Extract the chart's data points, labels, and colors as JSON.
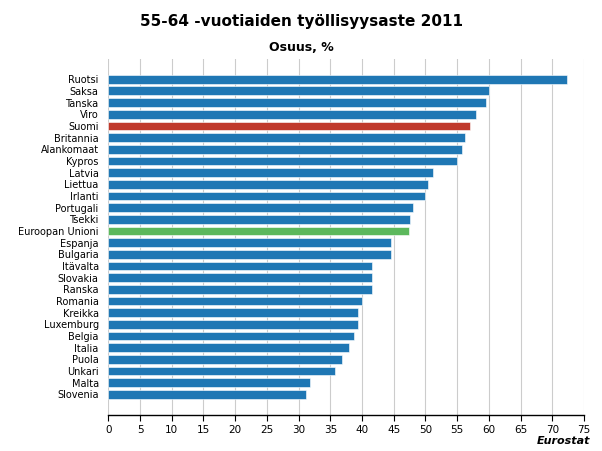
{
  "title": "55-64 -vuotiaiden työllisyysaste 2011",
  "subtitle": "Osuus, %",
  "source": "Eurostat",
  "categories": [
    "Slovenia",
    "Malta",
    "Unkari",
    "Puola",
    "Italia",
    "Belgia",
    "Luxemburg",
    "Kreikka",
    "Romania",
    "Ranska",
    "Slovakia",
    "Itävalta",
    "Bulgaria",
    "Espanja",
    "Euroopan Unioni",
    "Tsekki",
    "Portugali",
    "Irlanti",
    "Liettua",
    "Latvia",
    "Kypros",
    "Alankomaat",
    "Britannia",
    "Suomi",
    "Viro",
    "Tanska",
    "Saksa",
    "Ruotsi"
  ],
  "values": [
    31.2,
    31.8,
    35.8,
    36.9,
    37.9,
    38.7,
    39.3,
    39.4,
    40.0,
    41.5,
    41.5,
    41.5,
    44.5,
    44.5,
    47.4,
    47.6,
    48.0,
    49.9,
    50.4,
    51.2,
    55.0,
    55.8,
    56.3,
    57.0,
    58.0,
    59.5,
    60.0,
    72.3
  ],
  "colors": [
    "#1F77B4",
    "#1F77B4",
    "#1F77B4",
    "#1F77B4",
    "#1F77B4",
    "#1F77B4",
    "#1F77B4",
    "#1F77B4",
    "#1F77B4",
    "#1F77B4",
    "#1F77B4",
    "#1F77B4",
    "#1F77B4",
    "#1F77B4",
    "#5CB85C",
    "#1F77B4",
    "#1F77B4",
    "#1F77B4",
    "#1F77B4",
    "#1F77B4",
    "#1F77B4",
    "#1F77B4",
    "#1F77B4",
    "#C0392B",
    "#1F77B4",
    "#1F77B4",
    "#1F77B4",
    "#1F77B4"
  ],
  "xlim": [
    0,
    75
  ],
  "xticks": [
    0,
    5,
    10,
    15,
    20,
    25,
    30,
    35,
    40,
    45,
    50,
    55,
    60,
    65,
    70,
    75
  ],
  "grid_color": "#CCCCCC",
  "background_color": "#FFFFFF"
}
